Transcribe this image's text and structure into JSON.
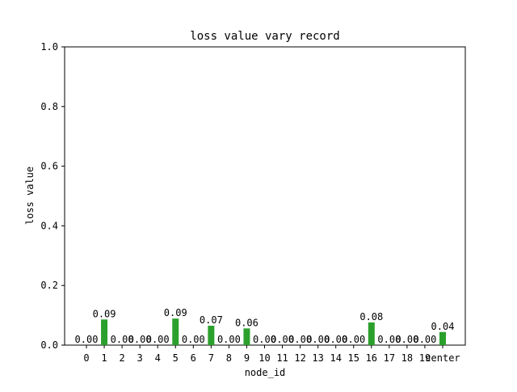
{
  "chart_data": {
    "type": "bar",
    "title": "loss value vary record",
    "xlabel": "node_id",
    "ylabel": "loss value",
    "ylim": [
      0,
      1.0
    ],
    "yticks": [
      0.0,
      0.2,
      0.4,
      0.6,
      0.8,
      1.0
    ],
    "ytick_labels": [
      "0.0",
      "0.2",
      "0.4",
      "0.6",
      "0.8",
      "1.0"
    ],
    "categories": [
      "0",
      "1",
      "2",
      "3",
      "4",
      "5",
      "6",
      "7",
      "8",
      "9",
      "10",
      "11",
      "12",
      "13",
      "14",
      "15",
      "16",
      "17",
      "18",
      "19",
      "center"
    ],
    "values": [
      0.0,
      0.086,
      0.0,
      0.0,
      0.0,
      0.089,
      0.0,
      0.065,
      0.0,
      0.056,
      0.0,
      0.0,
      0.0,
      0.0,
      0.0,
      0.0,
      0.076,
      0.0,
      0.0,
      0.0,
      0.044
    ],
    "data_labels": [
      "0.00",
      "0.09",
      "0.00",
      "0.00",
      "0.00",
      "0.09",
      "0.00",
      "0.07",
      "0.00",
      "0.06",
      "0.00",
      "0.00",
      "0.00",
      "0.00",
      "0.00",
      "0.00",
      "0.08",
      "0.00",
      "0.00",
      "0.00",
      "0.04"
    ],
    "bar_color": "#2ca02c",
    "grid": false,
    "legend": "none"
  }
}
